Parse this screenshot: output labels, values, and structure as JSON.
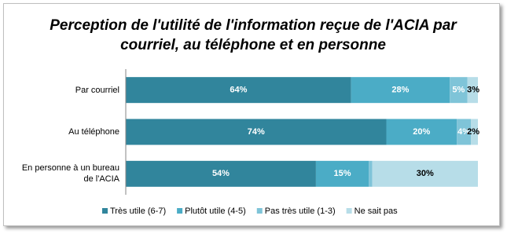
{
  "chart_data": {
    "type": "stacked-barh",
    "title": "Perception de l'utilité de l'information reçue de l'ACIA par courriel, au téléphone et en personne",
    "categories": [
      "Par courriel",
      "Au téléphone",
      "En personne à un bureau de l'ACIA"
    ],
    "series": [
      {
        "name": "Très utile (6-7)",
        "color": "#31859c",
        "values": [
          64,
          74,
          54
        ],
        "value_labels": [
          "64%",
          "74%",
          "54%"
        ]
      },
      {
        "name": "Plutôt utile (4-5)",
        "color": "#4bacc6",
        "values": [
          28,
          20,
          15
        ],
        "value_labels": [
          "28%",
          "20%",
          "15%"
        ]
      },
      {
        "name": "Pas très utile (1-3)",
        "color": "#7fc4d8",
        "values": [
          5,
          4,
          1
        ],
        "value_labels": [
          "5%",
          "4%",
          null
        ]
      },
      {
        "name": "Ne sait pas",
        "color": "#b7dde8",
        "values": [
          3,
          2,
          30
        ],
        "value_labels": [
          "3%",
          "2%",
          "30%"
        ]
      }
    ],
    "xlim": [
      0,
      100
    ],
    "legend": "bottom"
  }
}
